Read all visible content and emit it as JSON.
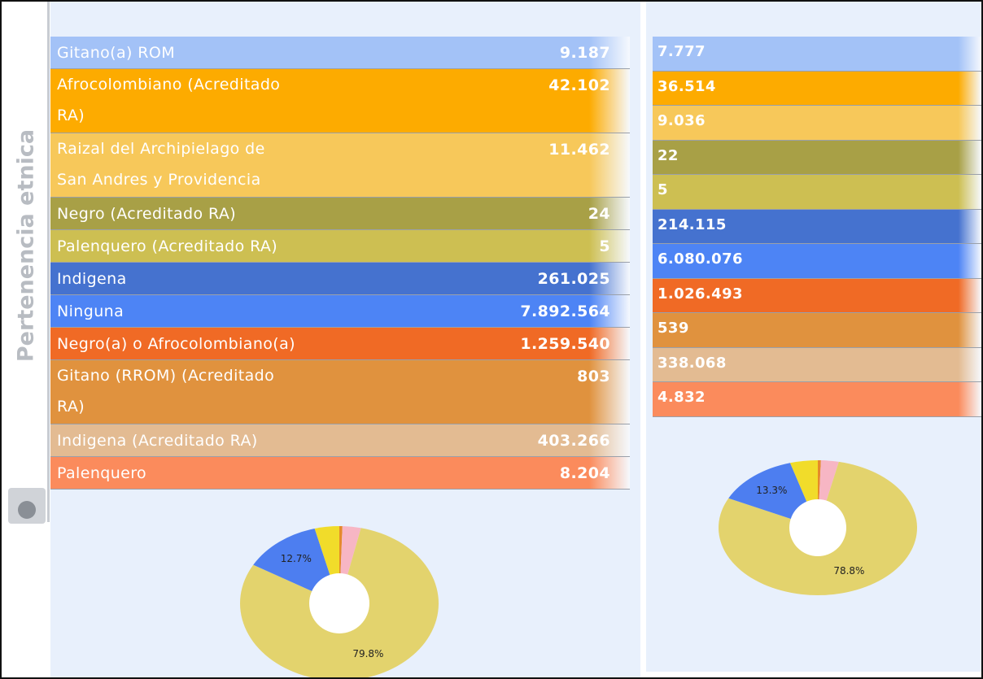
{
  "side_label": "Pertenencia etnica",
  "table": {
    "rows": [
      {
        "label": [
          "Gitano(a) ROM"
        ],
        "value": "9.187",
        "color": "#a3c2f7"
      },
      {
        "label": [
          "Afrocolombiano (Acreditado",
          "RA)"
        ],
        "value": "42.102",
        "color": "#fdab00"
      },
      {
        "label": [
          "Raizal del Archipielago de",
          "San Andres y Providencia"
        ],
        "value": "11.462",
        "color": "#f7c85a"
      },
      {
        "label": [
          "Negro (Acreditado RA)"
        ],
        "value": "24",
        "color": "#a8a046"
      },
      {
        "label": [
          "Palenquero (Acreditado RA)"
        ],
        "value": "5",
        "color": "#cdbf52"
      },
      {
        "label": [
          "Indigena"
        ],
        "value": "261.025",
        "color": "#4572cf"
      },
      {
        "label": [
          "Ninguna"
        ],
        "value": "7.892.564",
        "color": "#4d84f5"
      },
      {
        "label": [
          "Negro(a) o Afrocolombiano(a)"
        ],
        "value": "1.259.540",
        "color": "#f06a25"
      },
      {
        "label": [
          "Gitano (RROM) (Acreditado",
          "RA)"
        ],
        "value": "803",
        "color": "#e0923e"
      },
      {
        "label": [
          "Indigena (Acreditado RA)"
        ],
        "value": "403.266",
        "color": "#e3bb92"
      },
      {
        "label": [
          "Palenquero"
        ],
        "value": "8.204",
        "color": "#fb8b5c"
      }
    ]
  },
  "right_table": {
    "rows": [
      {
        "value": "7.777",
        "color": "#a3c2f7"
      },
      {
        "value": "36.514",
        "color": "#fdab00"
      },
      {
        "value": "9.036",
        "color": "#f7c85a"
      },
      {
        "value": "22",
        "color": "#a8a046"
      },
      {
        "value": "5",
        "color": "#cdbf52"
      },
      {
        "value": "214.115",
        "color": "#4572cf"
      },
      {
        "value": "6.080.076",
        "color": "#4d84f5"
      },
      {
        "value": "1.026.493",
        "color": "#f06a25"
      },
      {
        "value": "539",
        "color": "#e0923e"
      },
      {
        "value": "338.068",
        "color": "#e3bb92"
      },
      {
        "value": "4.832",
        "color": "#fb8b5c"
      }
    ]
  },
  "chart_data": [
    {
      "type": "pie",
      "values": [
        0.5,
        3.0,
        79.8,
        12.7,
        4.0
      ],
      "value_labels": [
        null,
        null,
        "79.8%",
        "12.7%",
        null
      ],
      "colors": [
        "#e58a2a",
        "#f7b6c4",
        "#e3d36d",
        "#4d7ef0",
        "#f1dc2a"
      ]
    },
    {
      "type": "pie",
      "values": [
        0.5,
        2.9,
        78.8,
        13.3,
        4.5
      ],
      "value_labels": [
        null,
        null,
        "78.8%",
        "13.3%",
        null
      ],
      "colors": [
        "#e58a2a",
        "#f7b6c4",
        "#e3d36d",
        "#4d7ef0",
        "#f1dc2a"
      ]
    }
  ]
}
